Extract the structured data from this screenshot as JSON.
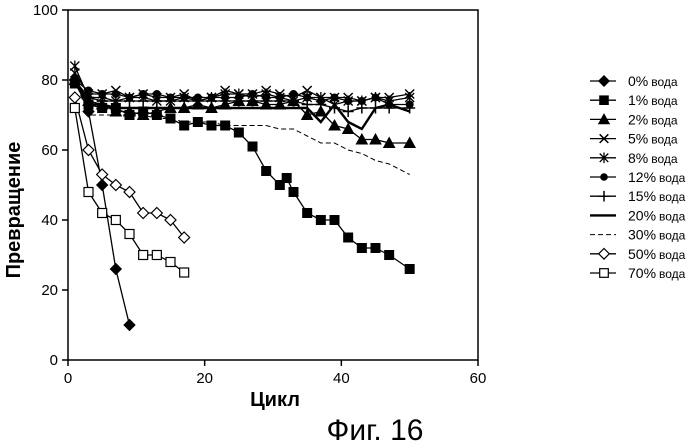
{
  "figure_caption": "Фиг. 16",
  "chart_data": {
    "type": "line",
    "title": "",
    "xlabel": "Цикл",
    "ylabel": "Превращение",
    "xlim": [
      0,
      60
    ],
    "ylim": [
      0,
      100
    ],
    "x_ticks": [
      0,
      20,
      40,
      60
    ],
    "y_ticks": [
      0,
      20,
      40,
      60,
      80,
      100
    ],
    "grid": false,
    "legend_position": "right",
    "series": [
      {
        "name": "0% вода",
        "legend_value": "0%",
        "legend_suffix": "вода",
        "marker": "diamond-filled",
        "line": "solid",
        "x": [
          1,
          3,
          5,
          7,
          9
        ],
        "y": [
          80,
          71,
          50,
          26,
          10
        ]
      },
      {
        "name": "1% вода",
        "legend_value": "1%",
        "legend_suffix": "вода",
        "marker": "square-filled",
        "line": "solid",
        "x": [
          1,
          3,
          5,
          7,
          9,
          11,
          13,
          15,
          17,
          19,
          21,
          23,
          25,
          27,
          29,
          31,
          32,
          33,
          35,
          37,
          39,
          41,
          43,
          45,
          47,
          50
        ],
        "y": [
          79,
          73,
          72,
          72,
          70,
          71,
          70,
          69,
          67,
          68,
          67,
          67,
          65,
          61,
          54,
          50,
          52,
          48,
          42,
          40,
          40,
          35,
          32,
          32,
          30,
          26
        ]
      },
      {
        "name": "2% вода",
        "legend_value": "2%",
        "legend_suffix": "вода",
        "marker": "triangle-filled",
        "line": "solid",
        "x": [
          1,
          3,
          5,
          7,
          9,
          11,
          13,
          15,
          17,
          19,
          21,
          23,
          25,
          27,
          29,
          31,
          33,
          35,
          37,
          39,
          41,
          43,
          45,
          47,
          50
        ],
        "y": [
          80,
          74,
          73,
          71,
          71,
          70,
          71,
          72,
          72,
          73,
          72,
          73,
          74,
          74,
          73,
          73,
          74,
          70,
          71,
          67,
          66,
          63,
          63,
          62,
          62
        ]
      },
      {
        "name": "5% вода",
        "legend_value": "5%",
        "legend_suffix": "вода",
        "marker": "x",
        "line": "solid",
        "x": [
          1,
          3,
          5,
          7,
          9,
          11,
          13,
          15,
          17,
          19,
          21,
          23,
          25,
          27,
          29,
          31,
          33,
          35,
          37,
          39,
          41,
          43,
          45,
          47,
          50
        ],
        "y": [
          82,
          76,
          76,
          77,
          75,
          76,
          75,
          75,
          76,
          74,
          75,
          77,
          76,
          76,
          77,
          76,
          75,
          77,
          75,
          75,
          75,
          74,
          75,
          75,
          76
        ]
      },
      {
        "name": "8% вода",
        "legend_value": "8%",
        "legend_suffix": "вода",
        "marker": "asterisk",
        "line": "solid",
        "x": [
          1,
          3,
          5,
          7,
          9,
          11,
          13,
          15,
          17,
          19,
          21,
          23,
          25,
          27,
          29,
          31,
          33,
          35,
          37,
          39,
          41,
          43,
          45,
          47,
          50
        ],
        "y": [
          84,
          75,
          75,
          74,
          75,
          75,
          74,
          74,
          75,
          74,
          75,
          76,
          76,
          75,
          76,
          75,
          74,
          75,
          75,
          73,
          74,
          74,
          75,
          74,
          75
        ]
      },
      {
        "name": "12% вода",
        "legend_value": "12%",
        "legend_suffix": "вода",
        "marker": "circle-filled",
        "line": "solid",
        "x": [
          1,
          3,
          5,
          7,
          9,
          11,
          13,
          15,
          17,
          19,
          21,
          23,
          25,
          27,
          29,
          31,
          33,
          35,
          37,
          39,
          41,
          43,
          45,
          47,
          50
        ],
        "y": [
          80,
          77,
          76,
          76,
          75,
          76,
          76,
          75,
          75,
          75,
          75,
          75,
          75,
          76,
          75,
          75,
          76,
          75,
          74,
          75,
          74,
          74,
          75,
          73,
          73
        ]
      },
      {
        "name": "15% вода",
        "legend_value": "15%",
        "legend_suffix": "вода",
        "marker": "plus",
        "line": "solid",
        "x": [
          1,
          3,
          5,
          7,
          9,
          11,
          13,
          15,
          17,
          19,
          21,
          23,
          25,
          27,
          29,
          31,
          33,
          35,
          37,
          39,
          41,
          43,
          45,
          47,
          50
        ],
        "y": [
          80,
          75,
          74,
          74,
          74,
          74,
          74,
          74,
          74,
          74,
          74,
          74,
          74,
          74,
          74,
          74,
          74,
          73,
          73,
          72,
          71,
          72,
          72,
          72,
          72
        ]
      },
      {
        "name": "20% вода",
        "legend_value": "20%",
        "legend_suffix": "вода",
        "marker": "none",
        "line": "thick",
        "x": [
          1,
          3,
          5,
          7,
          9,
          11,
          13,
          15,
          17,
          19,
          21,
          23,
          25,
          27,
          29,
          31,
          33,
          35,
          37,
          39,
          41,
          43,
          45,
          47,
          50
        ],
        "y": [
          80,
          73,
          73,
          72,
          72,
          72,
          72,
          72,
          72,
          72,
          72,
          72,
          72,
          72,
          72,
          72,
          72,
          72,
          68,
          73,
          68,
          66,
          72,
          73,
          71
        ]
      },
      {
        "name": "30% вода",
        "legend_value": "30%",
        "legend_suffix": "вода",
        "marker": "none",
        "line": "dashed",
        "x": [
          1,
          3,
          5,
          7,
          9,
          11,
          13,
          15,
          17,
          19,
          21,
          23,
          25,
          27,
          29,
          31,
          33,
          35,
          37,
          39,
          41,
          43,
          45,
          47,
          50
        ],
        "y": [
          80,
          70,
          70,
          70,
          70,
          70,
          69,
          69,
          68,
          68,
          68,
          67,
          67,
          67,
          67,
          66,
          66,
          64,
          62,
          62,
          60,
          59,
          57,
          56,
          53
        ]
      },
      {
        "name": "50% вода",
        "legend_value": "50%",
        "legend_suffix": "вода",
        "marker": "diamond-open",
        "line": "solid",
        "x": [
          1,
          3,
          5,
          7,
          9,
          11,
          13,
          15,
          17
        ],
        "y": [
          75,
          60,
          53,
          50,
          48,
          42,
          42,
          40,
          35
        ]
      },
      {
        "name": "70% вода",
        "legend_value": "70%",
        "legend_suffix": "вода",
        "marker": "square-open",
        "line": "solid",
        "x": [
          1,
          3,
          5,
          7,
          9,
          11,
          13,
          15,
          17
        ],
        "y": [
          72,
          48,
          42,
          40,
          36,
          30,
          30,
          28,
          25
        ]
      }
    ]
  }
}
